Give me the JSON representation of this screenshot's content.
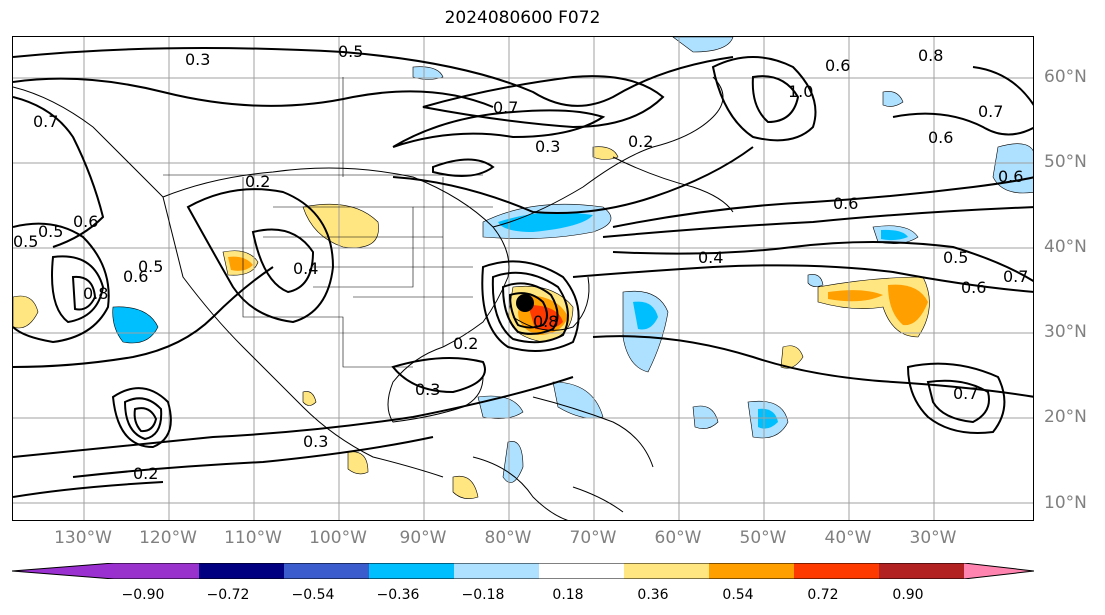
{
  "title": "2024080600 F072",
  "lon_labels": [
    "130°W",
    "120°W",
    "110°W",
    "100°W",
    "90°W",
    "80°W",
    "70°W",
    "60°W",
    "50°W",
    "40°W",
    "30°W"
  ],
  "lat_labels": [
    "60°N",
    "50°N",
    "40°N",
    "30°N",
    "20°N",
    "10°N"
  ],
  "contour_labels": [
    "0.3",
    "0.5",
    "0.7",
    "0.8",
    "0.6",
    "0.7",
    "0.6",
    "0.3",
    "0.2",
    "0.7",
    "0.6",
    "0.2",
    "0.4",
    "0.5",
    "0.6",
    "0.4",
    "0.2",
    "0.3",
    "0.8",
    "0.6",
    "0.7",
    "0.5",
    "0.6",
    "0.3",
    "0.7",
    "0.2",
    "0.6",
    "0.5",
    "1.0",
    "0.5",
    "0.8"
  ],
  "colorbar": {
    "tick_labels": [
      "−0.90",
      "−0.72",
      "−0.54",
      "−0.36",
      "−0.18",
      "0.18",
      "0.36",
      "0.54",
      "0.72",
      "0.90"
    ],
    "colors": {
      "lt_-0.90": "#9b30d0",
      "-0.90_-0.72": "#9932cc",
      "-0.72_-0.54": "#000080",
      "-0.54_-0.36": "#3a5ccc",
      "-0.36_-0.18": "#00bfff",
      "-0.18_0.18_neg": "#aee0ff",
      "neutral": "#ffffff",
      "0.18_0.36": "#ffe680",
      "0.36_0.54": "#ff9f00",
      "0.54_0.72": "#ff3a00",
      "0.72_0.90": "#b22222",
      "gt_0.90": "#ff85b0"
    }
  },
  "storm_marker": "black-dot"
}
